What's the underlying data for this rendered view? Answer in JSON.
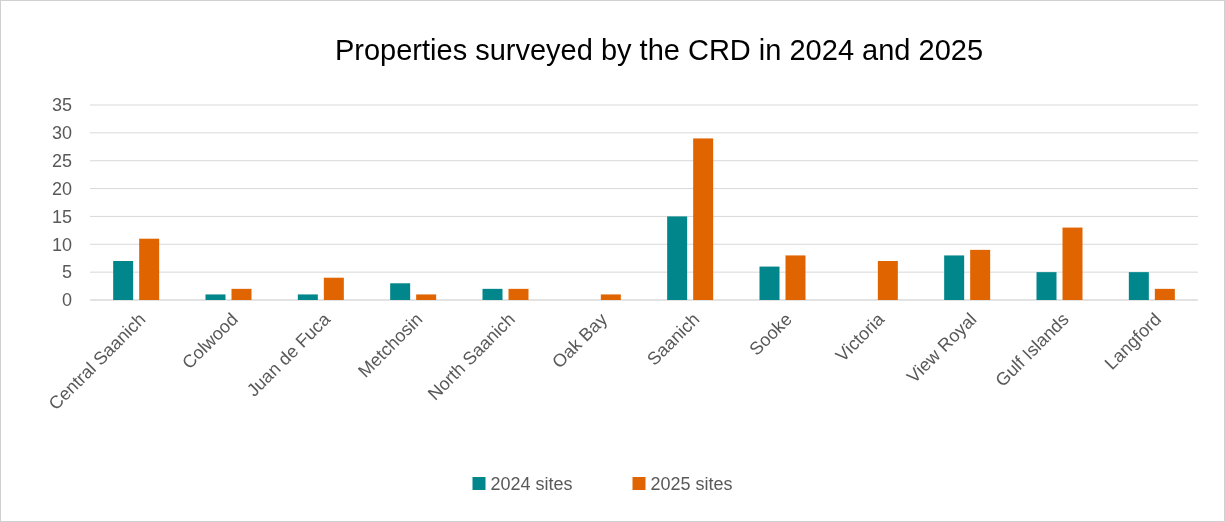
{
  "chart_data": {
    "type": "bar",
    "title": "Properties surveyed by the CRD in 2024 and 2025",
    "categories": [
      "Central Saanich",
      "Colwood",
      "Juan de Fuca",
      "Metchosin",
      "North Saanich",
      "Oak Bay",
      "Saanich",
      "Sooke",
      "Victoria",
      "View Royal",
      "Gulf Islands",
      "Langford"
    ],
    "series": [
      {
        "name": "2024 sites",
        "color": "#00868b",
        "values": [
          7,
          1,
          1,
          3,
          2,
          0,
          15,
          6,
          0,
          8,
          5,
          5
        ]
      },
      {
        "name": "2025 sites",
        "color": "#e06400",
        "values": [
          11,
          2,
          4,
          1,
          2,
          1,
          29,
          8,
          7,
          9,
          13,
          2
        ]
      }
    ],
    "ylim": [
      0,
      35
    ],
    "yticks": [
      0,
      5,
      10,
      15,
      20,
      25,
      30,
      35
    ],
    "grid": "y",
    "legend": "bottom"
  }
}
